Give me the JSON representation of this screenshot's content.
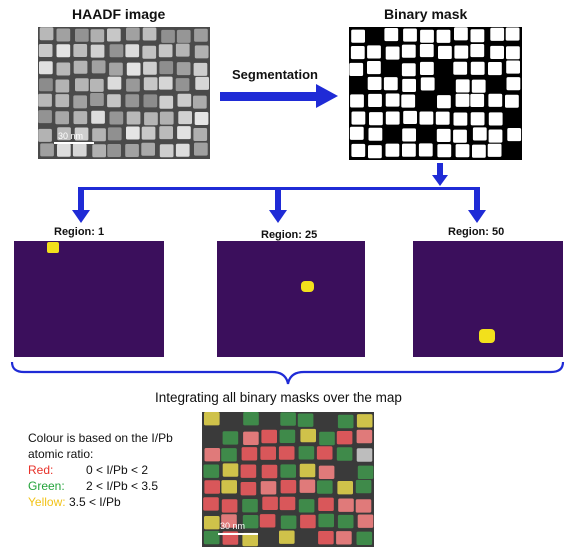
{
  "top": {
    "haadf_title": "HAADF image",
    "mask_title": "Binary mask",
    "arrow_label": "Segmentation",
    "haadf_scalebar": "30 nm"
  },
  "regions": [
    {
      "label": "Region: 1"
    },
    {
      "label": "Region: 25"
    },
    {
      "label": "Region: 50"
    }
  ],
  "integration_text": "Integrating all binary masks over the map",
  "legend": {
    "intro_line1": "Colour is based on the I/Pb",
    "intro_line2": "atomic ratio:",
    "items": [
      {
        "name": "Red:",
        "range": "0 < I/Pb < 2",
        "color": "#e8322a"
      },
      {
        "name": "Green:",
        "range": "2 < I/Pb < 3.5",
        "color": "#23a33a"
      },
      {
        "name": "Yellow:",
        "range": "3.5 < I/Pb",
        "color": "#f2c31a"
      }
    ]
  },
  "map_scalebar": "30 nm",
  "colors": {
    "arrow": "#1f2bd6",
    "region_bg": "#3b0f5c",
    "region_blob": "#f2e01c"
  }
}
